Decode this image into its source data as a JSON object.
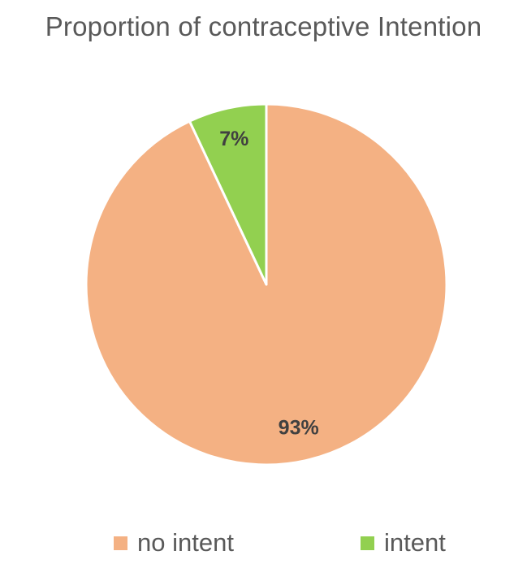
{
  "chart_data": {
    "type": "pie",
    "title": "Proportion of contraceptive Intention",
    "legend_position": "bottom",
    "slices": [
      {
        "name": "no intent",
        "value": 93,
        "label": "93%",
        "color": "#F4B183"
      },
      {
        "name": "intent",
        "value": 7,
        "label": "7%",
        "color": "#92D050"
      }
    ]
  }
}
